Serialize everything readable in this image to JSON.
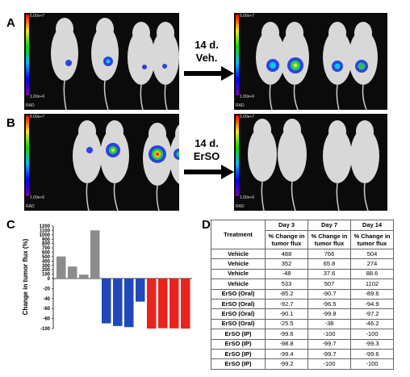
{
  "panels": {
    "a": "A",
    "b": "B",
    "c": "C",
    "d": "D"
  },
  "imaging": {
    "scale_max": "5.00e+7",
    "scale_min": "1.00e+6",
    "scale_max_alt": "8.00e+7",
    "units": "RAD",
    "arrow_a_line1": "14 d.",
    "arrow_a_line2": "Veh.",
    "arrow_b_line1": "14 d.",
    "arrow_b_line2": "ErSO"
  },
  "chart_data": {
    "type": "bar",
    "ylabel": "Change in tumor flux (%)",
    "ylim": [
      -100,
      1200
    ],
    "yticks": [
      1200,
      1100,
      1000,
      900,
      800,
      700,
      600,
      500,
      400,
      300,
      200,
      100,
      0,
      -20,
      -40,
      -60,
      -80,
      -100
    ],
    "values": [
      504,
      274,
      88.6,
      1102,
      -89.6,
      -94.9,
      -97.2,
      -46.2,
      -100,
      -99.3,
      -99.6,
      -100
    ],
    "colors": [
      "#8c8c8c",
      "#8c8c8c",
      "#8c8c8c",
      "#8c8c8c",
      "#2148b8",
      "#2148b8",
      "#2148b8",
      "#2148b8",
      "#e8241c",
      "#e8241c",
      "#e8241c",
      "#e8241c"
    ]
  },
  "table": {
    "head_treatment": "Treatment",
    "days": [
      "Day 3",
      "Day 7",
      "Day 14"
    ],
    "sub": "% Change in tumor flux",
    "rows": [
      {
        "t": "Vehicle",
        "d3": "488",
        "d7": "766",
        "d14": "504"
      },
      {
        "t": "Vehicle",
        "d3": "352",
        "d7": "65.8",
        "d14": "274"
      },
      {
        "t": "Vehicle",
        "d3": "-48",
        "d7": "37.6",
        "d14": "88.6"
      },
      {
        "t": "Vehicle",
        "d3": "533",
        "d7": "507",
        "d14": "1102"
      },
      {
        "t": "ErSO (Oral)",
        "d3": "-85.2",
        "d7": "-90.7",
        "d14": "-89.6"
      },
      {
        "t": "ErSO (Oral)",
        "d3": "-92.7",
        "d7": "-96.5",
        "d14": "-94.9"
      },
      {
        "t": "ErSO (Oral)",
        "d3": "-90.1",
        "d7": "-99.8",
        "d14": "-97.2"
      },
      {
        "t": "ErSO (Oral)",
        "d3": "-25.5",
        "d7": "-38",
        "d14": "-46.2"
      },
      {
        "t": "ErSO (IP)",
        "d3": "-99.6",
        "d7": "-100",
        "d14": "-100"
      },
      {
        "t": "ErSO (IP)",
        "d3": "-98.8",
        "d7": "-99.7",
        "d14": "-99.3"
      },
      {
        "t": "ErSO (IP)",
        "d3": "-99.4",
        "d7": "-99.7",
        "d14": "-99.6"
      },
      {
        "t": "ErSO (IP)",
        "d3": "-99.2",
        "d7": "-100",
        "d14": "-100"
      }
    ]
  }
}
